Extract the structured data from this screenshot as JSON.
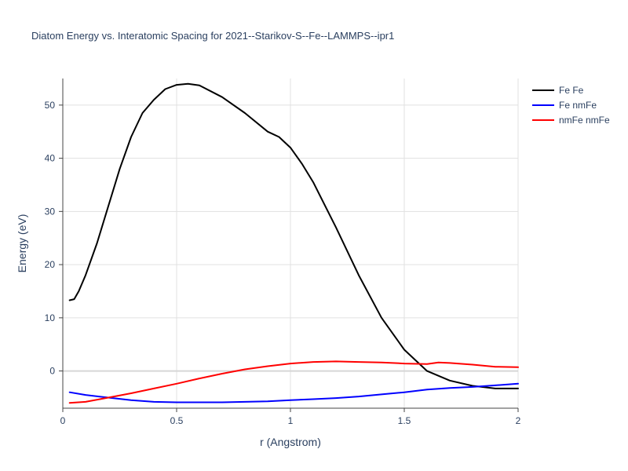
{
  "chart_data": {
    "type": "line",
    "title": "Diatom Energy vs. Interatomic Spacing for 2021--Starikov-S--Fe--LAMMPS--ipr1",
    "xlabel": "r (Angstrom)",
    "ylabel": "Energy (eV)",
    "xlim": [
      0,
      2
    ],
    "ylim": [
      -7,
      55
    ],
    "xticks": [
      0,
      0.5,
      1,
      1.5,
      2
    ],
    "xtick_labels": [
      "0",
      "0.5",
      "1",
      "1.5",
      "2"
    ],
    "yticks": [
      0,
      10,
      20,
      30,
      40,
      50
    ],
    "ytick_labels": [
      "0",
      "10",
      "20",
      "30",
      "40",
      "50"
    ],
    "grid": true,
    "legend_position": "top-right",
    "series": [
      {
        "name": "Fe Fe",
        "color": "#000000",
        "x": [
          0.03,
          0.05,
          0.07,
          0.1,
          0.15,
          0.2,
          0.25,
          0.3,
          0.35,
          0.4,
          0.45,
          0.5,
          0.55,
          0.6,
          0.7,
          0.8,
          0.9,
          0.95,
          1.0,
          1.05,
          1.1,
          1.2,
          1.3,
          1.4,
          1.5,
          1.6,
          1.7,
          1.8,
          1.9,
          2.0
        ],
        "y": [
          13.3,
          13.5,
          15.0,
          18.0,
          24.0,
          31.0,
          38.0,
          44.0,
          48.5,
          51.0,
          53.0,
          53.8,
          54.0,
          53.7,
          51.5,
          48.5,
          45.0,
          44.0,
          42.0,
          39.0,
          35.5,
          27.0,
          18.0,
          10.0,
          4.0,
          0.0,
          -1.8,
          -2.8,
          -3.3,
          -3.3
        ]
      },
      {
        "name": "Fe nmFe",
        "color": "#0000ff",
        "x": [
          0.03,
          0.1,
          0.2,
          0.3,
          0.4,
          0.5,
          0.6,
          0.7,
          0.8,
          0.9,
          1.0,
          1.1,
          1.2,
          1.3,
          1.4,
          1.5,
          1.6,
          1.7,
          1.8,
          1.9,
          2.0
        ],
        "y": [
          -4.0,
          -4.5,
          -5.0,
          -5.5,
          -5.8,
          -5.9,
          -5.9,
          -5.9,
          -5.8,
          -5.7,
          -5.5,
          -5.3,
          -5.1,
          -4.8,
          -4.4,
          -4.0,
          -3.5,
          -3.2,
          -3.0,
          -2.7,
          -2.4
        ]
      },
      {
        "name": "nmFe nmFe",
        "color": "#ff0000",
        "x": [
          0.03,
          0.1,
          0.2,
          0.3,
          0.4,
          0.5,
          0.6,
          0.7,
          0.8,
          0.9,
          1.0,
          1.1,
          1.2,
          1.3,
          1.4,
          1.5,
          1.6,
          1.65,
          1.7,
          1.8,
          1.9,
          2.0
        ],
        "y": [
          -6.0,
          -5.8,
          -5.0,
          -4.2,
          -3.3,
          -2.4,
          -1.4,
          -0.5,
          0.3,
          0.9,
          1.4,
          1.7,
          1.8,
          1.7,
          1.6,
          1.4,
          1.3,
          1.6,
          1.5,
          1.2,
          0.8,
          0.7
        ]
      }
    ]
  }
}
